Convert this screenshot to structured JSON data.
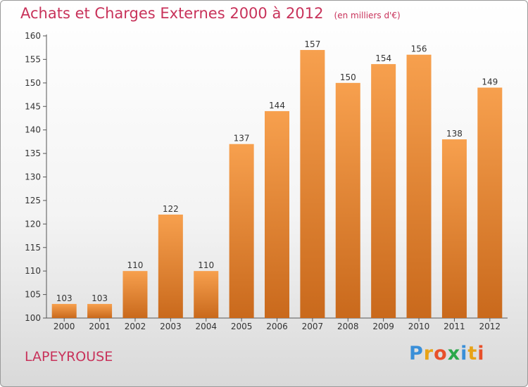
{
  "title": "Achats et Charges Externes 2000 à 2012",
  "subtitle": "(en milliers d'€)",
  "commune": "LAPEYROUSE",
  "logo": {
    "letters": [
      "P",
      "r",
      "o",
      "x",
      "i",
      "t",
      "i"
    ],
    "colors": [
      "#3a8fd8",
      "#e8a317",
      "#e8502a",
      "#2aa84a",
      "#3a8fd8",
      "#e8a317",
      "#e8502a"
    ]
  },
  "colors": {
    "accent": "#c8325a",
    "bar_top": "#f7a04e",
    "bar_bottom": "#c9691c",
    "axis": "#555555"
  },
  "chart_data": {
    "type": "bar",
    "categories": [
      "2000",
      "2001",
      "2002",
      "2003",
      "2004",
      "2005",
      "2006",
      "2007",
      "2008",
      "2009",
      "2010",
      "2011",
      "2012"
    ],
    "values": [
      103,
      103,
      110,
      122,
      110,
      137,
      144,
      157,
      150,
      154,
      156,
      138,
      149
    ],
    "ylim": [
      100,
      160
    ],
    "yticks": [
      100,
      105,
      110,
      115,
      120,
      125,
      130,
      135,
      140,
      145,
      150,
      155,
      160
    ],
    "grid": false,
    "legend": "none"
  }
}
